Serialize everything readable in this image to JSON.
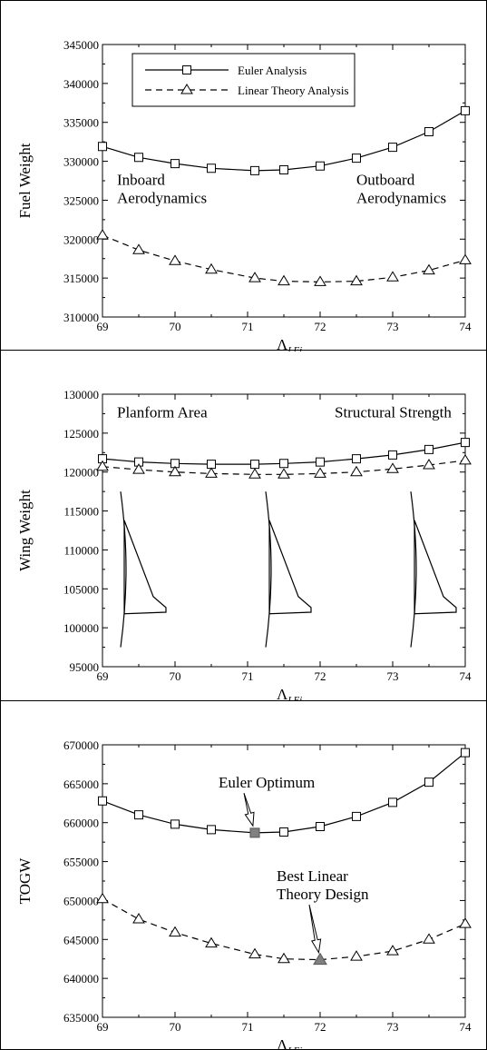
{
  "chart_data": [
    {
      "type": "line",
      "ylabel": "Fuel Weight",
      "xlabel": {
        "main": "Λ",
        "sub": "LEi"
      },
      "xlim": [
        69,
        74
      ],
      "ylim": [
        310000,
        345000
      ],
      "xticks": [
        69,
        70,
        71,
        72,
        73,
        74
      ],
      "yticks": [
        310000,
        315000,
        320000,
        325000,
        330000,
        335000,
        340000,
        345000
      ],
      "legend": {
        "placement": "top-left",
        "entries": [
          {
            "label": "Euler Analysis",
            "line": "solid",
            "marker": "square"
          },
          {
            "label": "Linear Theory Analysis",
            "line": "dashed",
            "marker": "triangle"
          }
        ]
      },
      "annotations": [
        {
          "id": "inboard",
          "lines": [
            "Inboard",
            "Aerodynamics"
          ],
          "x": 69.2,
          "y": 327000
        },
        {
          "id": "outboard",
          "lines": [
            "Outboard",
            "Aerodynamics"
          ],
          "x": 72.5,
          "y": 327000
        }
      ],
      "series": [
        {
          "name": "Euler Analysis",
          "line": "solid",
          "marker": "square",
          "x": [
            69,
            69.5,
            70,
            70.5,
            71.1,
            71.5,
            72,
            72.5,
            73,
            73.5,
            74
          ],
          "y": [
            331900,
            330500,
            329700,
            329100,
            328800,
            328900,
            329400,
            330400,
            331800,
            333800,
            336500
          ]
        },
        {
          "name": "Linear Theory Analysis",
          "line": "dashed",
          "marker": "triangle",
          "x": [
            69,
            69.5,
            70,
            70.5,
            71.1,
            71.5,
            72,
            72.5,
            73,
            73.5,
            74
          ],
          "y": [
            320500,
            318600,
            317200,
            316100,
            315000,
            314600,
            314500,
            314600,
            315100,
            316000,
            317300
          ]
        }
      ]
    },
    {
      "type": "line",
      "ylabel": "Wing Weight",
      "xlabel": {
        "main": "Λ",
        "sub": "LEi"
      },
      "xlim": [
        69,
        74
      ],
      "ylim": [
        95000,
        130000
      ],
      "xticks": [
        69,
        70,
        71,
        72,
        73,
        74
      ],
      "yticks": [
        95000,
        100000,
        105000,
        110000,
        115000,
        120000,
        125000,
        130000
      ],
      "annotations": [
        {
          "id": "planform",
          "lines": [
            "Planform Area"
          ],
          "x": 69.2,
          "y": 127000
        },
        {
          "id": "structural",
          "lines": [
            "Structural Strength"
          ],
          "x": 72.2,
          "y": 127000
        }
      ],
      "planform_sketches": [
        {
          "x_center": 69.3
        },
        {
          "x_center": 71.3
        },
        {
          "x_center": 73.3
        }
      ],
      "series": [
        {
          "name": "Euler Analysis",
          "line": "solid",
          "marker": "square",
          "x": [
            69,
            69.5,
            70,
            70.5,
            71.1,
            71.5,
            72,
            72.5,
            73,
            73.5,
            74
          ],
          "y": [
            121700,
            121300,
            121100,
            121000,
            121000,
            121100,
            121300,
            121700,
            122200,
            122900,
            123800
          ]
        },
        {
          "name": "Linear Theory Analysis",
          "line": "dashed",
          "marker": "triangle",
          "x": [
            69,
            69.5,
            70,
            70.5,
            71.1,
            71.5,
            72,
            72.5,
            73,
            73.5,
            74
          ],
          "y": [
            120700,
            120300,
            120000,
            119800,
            119700,
            119700,
            119800,
            120000,
            120400,
            120900,
            121500
          ]
        }
      ]
    },
    {
      "type": "line",
      "ylabel": "TOGW",
      "xlabel": {
        "main": "Λ",
        "sub": "LEi"
      },
      "xlim": [
        69,
        74
      ],
      "ylim": [
        635000,
        670000
      ],
      "xticks": [
        69,
        70,
        71,
        72,
        73,
        74
      ],
      "yticks": [
        635000,
        640000,
        645000,
        650000,
        655000,
        660000,
        665000,
        670000
      ],
      "annotations": [
        {
          "id": "euler-opt",
          "lines": [
            "Euler Optimum"
          ],
          "x": 70.6,
          "y": 664500,
          "arrow_to": {
            "x": 71.1,
            "y": 658700
          }
        },
        {
          "id": "best-linear",
          "lines": [
            "Best Linear",
            "Theory Design"
          ],
          "x": 71.4,
          "y": 652500,
          "arrow_to": {
            "x": 72.0,
            "y": 642400
          }
        }
      ],
      "highlighted_points": [
        {
          "series": "Euler Analysis",
          "x": 71.1,
          "y": 658700,
          "marker": "square",
          "fill": "#808080"
        },
        {
          "series": "Linear Theory Analysis",
          "x": 72.0,
          "y": 642400,
          "marker": "triangle",
          "fill": "#808080"
        }
      ],
      "series": [
        {
          "name": "Euler Analysis",
          "line": "solid",
          "marker": "square",
          "x": [
            69,
            69.5,
            70,
            70.5,
            71.1,
            71.5,
            72,
            72.5,
            73,
            73.5,
            74
          ],
          "y": [
            662800,
            661000,
            659800,
            659100,
            658700,
            658800,
            659500,
            660800,
            662600,
            665200,
            669000
          ]
        },
        {
          "name": "Linear Theory Analysis",
          "line": "dashed",
          "marker": "triangle",
          "x": [
            69,
            69.5,
            70,
            70.5,
            71.1,
            71.5,
            72,
            72.5,
            73,
            73.5,
            74
          ],
          "y": [
            650200,
            647600,
            645900,
            644500,
            643100,
            642500,
            642400,
            642800,
            643500,
            645000,
            647000
          ]
        }
      ]
    }
  ]
}
